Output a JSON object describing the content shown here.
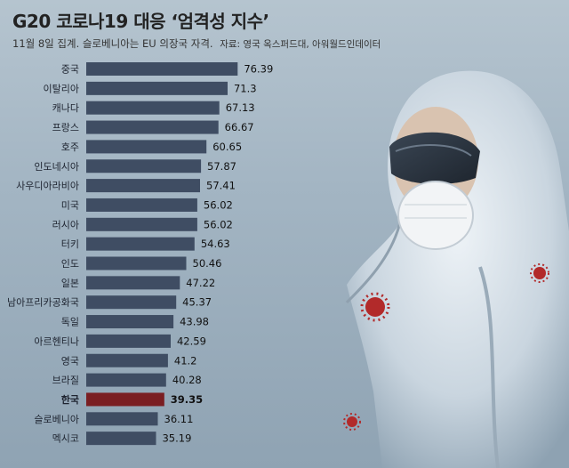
{
  "header": {
    "title": "G20 코로나19 대응 ‘엄격성 지수’",
    "subtitle": "11월 8일 집계. 슬로베니아는 EU 의장국 자격.",
    "source": "자료: 영국 옥스퍼드대, 아워월드인데이터"
  },
  "colors": {
    "bar": "#3f4d63",
    "highlight_bar": "#7a1e22",
    "label_text": "#1e2430",
    "value_text": "#111111"
  },
  "chart_data": {
    "type": "bar",
    "orientation": "horizontal",
    "highlight": "한국",
    "categories": [
      "중국",
      "이탈리아",
      "캐나다",
      "프랑스",
      "호주",
      "인도네시아",
      "사우디아라비아",
      "미국",
      "러시아",
      "터키",
      "인도",
      "일본",
      "남아프리카공화국",
      "독일",
      "아르헨티나",
      "영국",
      "브라질",
      "한국",
      "슬로베니아",
      "멕시코"
    ],
    "values": [
      76.39,
      71.3,
      67.13,
      66.67,
      60.65,
      57.87,
      57.41,
      56.02,
      56.02,
      54.63,
      50.46,
      47.22,
      45.37,
      43.98,
      42.59,
      41.2,
      40.28,
      39.35,
      36.11,
      35.19
    ],
    "value_labels": [
      "76.39",
      "71.3",
      "67.13",
      "66.67",
      "60.65",
      "57.87",
      "57.41",
      "56.02",
      "56.02",
      "54.63",
      "50.46",
      "47.22",
      "45.37",
      "43.98",
      "42.59",
      "41.2",
      "40.28",
      "39.35",
      "36.11",
      "35.19"
    ],
    "xlim": [
      0,
      100
    ]
  }
}
